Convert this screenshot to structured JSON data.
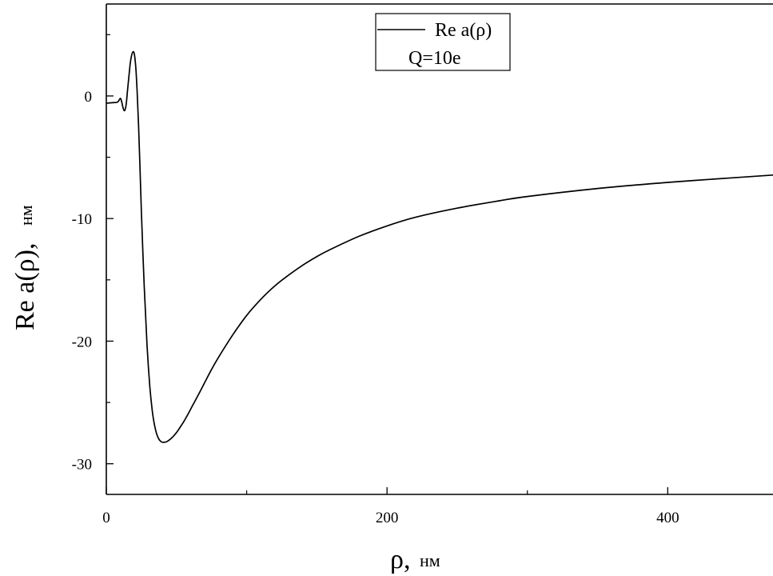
{
  "chart_data": {
    "type": "line",
    "xlabel_symbol": "ρ,",
    "xlabel_unit": "нм",
    "ylabel_main": "Re a(ρ),",
    "ylabel_unit": "нм",
    "xlim": [
      0,
      475
    ],
    "ylim": [
      -32.5,
      7.5
    ],
    "x_ticks": [
      0,
      200,
      400
    ],
    "x_minor_ticks": [
      100,
      300
    ],
    "y_ticks": [
      0,
      -10,
      -20,
      -30
    ],
    "y_minor_ticks": [
      5,
      -5,
      -15,
      -25
    ],
    "x_tick_labels": [
      "0",
      "200",
      "400"
    ],
    "y_tick_labels": [
      "0",
      "-10",
      "-20",
      "-30"
    ],
    "grid": false,
    "legend": {
      "position": "top-center",
      "entry": "Re a(ρ)",
      "note": "Q=10e"
    },
    "series": [
      {
        "name": "Re a(ρ)",
        "color": "#000000",
        "x": [
          0,
          4,
          8,
          10,
          11,
          12,
          13,
          14,
          15,
          16,
          17,
          18,
          19,
          20,
          21,
          22,
          23,
          24,
          25,
          27,
          29,
          31,
          33,
          35,
          37,
          39,
          41,
          43,
          45,
          47,
          49,
          51,
          53,
          55,
          58,
          61,
          65,
          70,
          75,
          80,
          90,
          100,
          110,
          120,
          130,
          140,
          150,
          160,
          180,
          200,
          220,
          250,
          280,
          300,
          350,
          400,
          450,
          475
        ],
        "y": [
          -0.6,
          -0.55,
          -0.5,
          -0.2,
          -0.5,
          -1.0,
          -1.2,
          -0.8,
          0.3,
          1.5,
          2.6,
          3.3,
          3.6,
          3.4,
          2.3,
          0.3,
          -2.5,
          -5.8,
          -9.5,
          -15.5,
          -20.3,
          -23.7,
          -25.9,
          -27.2,
          -27.9,
          -28.2,
          -28.25,
          -28.2,
          -28.05,
          -27.85,
          -27.6,
          -27.3,
          -26.95,
          -26.6,
          -26.0,
          -25.35,
          -24.5,
          -23.4,
          -22.3,
          -21.3,
          -19.5,
          -17.9,
          -16.6,
          -15.5,
          -14.6,
          -13.8,
          -13.1,
          -12.5,
          -11.45,
          -10.6,
          -9.9,
          -9.15,
          -8.55,
          -8.2,
          -7.55,
          -7.05,
          -6.65,
          -6.45
        ]
      }
    ]
  }
}
